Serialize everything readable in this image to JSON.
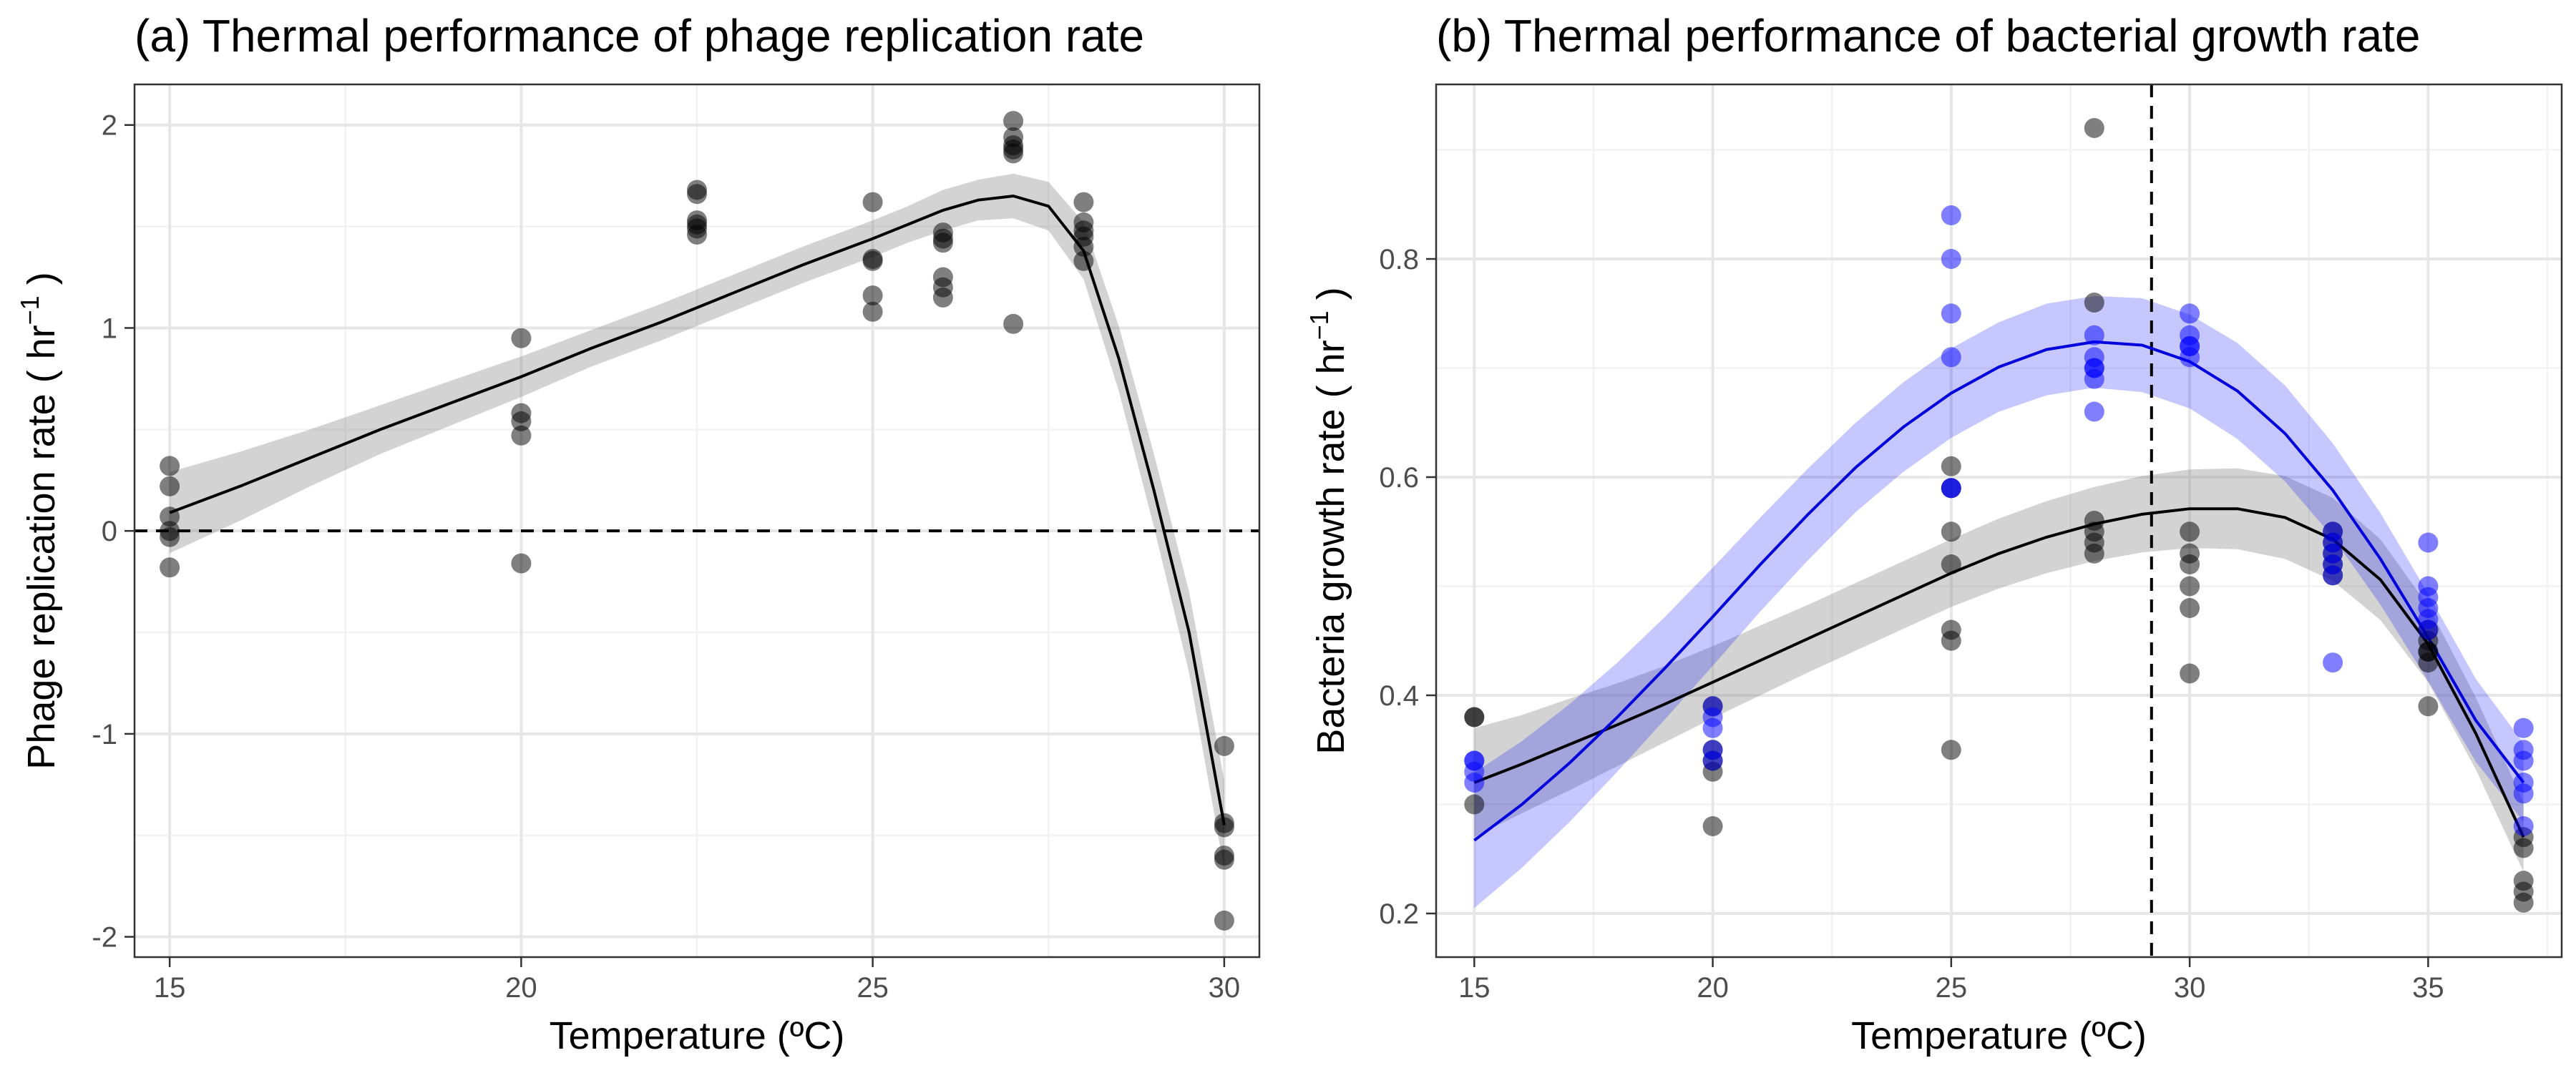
{
  "chart_data": [
    {
      "type": "scatter",
      "title": "(a) Thermal performance of phage replication rate",
      "xlabel": "Temperature (ºC)",
      "ylabel": "Phage replication rate ( hr",
      "ylabel_sup": "−1",
      "ylabel_end": " )",
      "xlim": [
        14.5,
        30.5
      ],
      "ylim": [
        -2.1,
        2.2
      ],
      "x_ticks": [
        15,
        20,
        25,
        30
      ],
      "x_tick_labels": [
        "15",
        "20",
        "25",
        "30"
      ],
      "y_ticks": [
        -2,
        -1,
        0,
        1,
        2
      ],
      "y_tick_labels": [
        "-2",
        "-1",
        "0",
        "1",
        "2"
      ],
      "reference_line": {
        "orientation": "horizontal",
        "value": 0,
        "style": "dashed"
      },
      "grid": true,
      "series": [
        {
          "color": "#000000",
          "points": [
            [
              15,
              0.32
            ],
            [
              15,
              0.22
            ],
            [
              15,
              0.07
            ],
            [
              15,
              0.0
            ],
            [
              15,
              -0.03
            ],
            [
              15,
              -0.18
            ],
            [
              20,
              0.95
            ],
            [
              20,
              0.58
            ],
            [
              20,
              0.54
            ],
            [
              20,
              0.47
            ],
            [
              20,
              -0.16
            ],
            [
              22.5,
              1.68
            ],
            [
              22.5,
              1.66
            ],
            [
              22.5,
              1.53
            ],
            [
              22.5,
              1.51
            ],
            [
              22.5,
              1.49
            ],
            [
              22.5,
              1.46
            ],
            [
              25,
              1.62
            ],
            [
              25,
              1.34
            ],
            [
              25,
              1.33
            ],
            [
              25,
              1.16
            ],
            [
              25,
              1.08
            ],
            [
              26,
              1.47
            ],
            [
              26,
              1.44
            ],
            [
              26,
              1.42
            ],
            [
              26,
              1.25
            ],
            [
              26,
              1.2
            ],
            [
              26,
              1.15
            ],
            [
              27,
              2.02
            ],
            [
              27,
              1.94
            ],
            [
              27,
              1.9
            ],
            [
              27,
              1.88
            ],
            [
              27,
              1.86
            ],
            [
              27,
              1.02
            ],
            [
              28,
              1.62
            ],
            [
              28,
              1.52
            ],
            [
              28,
              1.48
            ],
            [
              28,
              1.45
            ],
            [
              28,
              1.4
            ],
            [
              28,
              1.33
            ],
            [
              30,
              -1.06
            ],
            [
              30,
              -1.44
            ],
            [
              30,
              -1.46
            ],
            [
              30,
              -1.6
            ],
            [
              30,
              -1.62
            ],
            [
              30,
              -1.92
            ]
          ],
          "fit": [
            [
              15,
              0.09
            ],
            [
              16,
              0.22
            ],
            [
              17,
              0.36
            ],
            [
              18,
              0.5
            ],
            [
              19,
              0.63
            ],
            [
              20,
              0.76
            ],
            [
              21,
              0.9
            ],
            [
              22,
              1.03
            ],
            [
              23,
              1.17
            ],
            [
              24,
              1.31
            ],
            [
              25,
              1.44
            ],
            [
              25.5,
              1.51
            ],
            [
              26,
              1.58
            ],
            [
              26.5,
              1.63
            ],
            [
              27,
              1.65
            ],
            [
              27.5,
              1.6
            ],
            [
              28,
              1.38
            ],
            [
              28.5,
              0.85
            ],
            [
              29,
              0.2
            ],
            [
              29.5,
              -0.5
            ],
            [
              30,
              -1.45
            ]
          ],
          "band_halfwidth": [
            0.2,
            0.17,
            0.14,
            0.12,
            0.11,
            0.1,
            0.09,
            0.09,
            0.09,
            0.09,
            0.09,
            0.09,
            0.1,
            0.1,
            0.11,
            0.12,
            0.14,
            0.16,
            0.18,
            0.2,
            0.22
          ]
        }
      ]
    },
    {
      "type": "scatter",
      "title": "(b) Thermal performance of bacterial growth rate",
      "xlabel": "Temperature (ºC)",
      "ylabel": "Bacteria growth rate ( hr",
      "ylabel_sup": "−1",
      "ylabel_end": " )",
      "xlim": [
        14.2,
        37.8
      ],
      "ylim": [
        0.16,
        0.96
      ],
      "x_ticks": [
        15,
        20,
        25,
        30,
        35
      ],
      "x_tick_labels": [
        "15",
        "20",
        "25",
        "30",
        "35"
      ],
      "y_ticks": [
        0.2,
        0.4,
        0.6,
        0.8
      ],
      "y_tick_labels": [
        "0.2",
        "0.4",
        "0.6",
        "0.8"
      ],
      "reference_line": {
        "orientation": "vertical",
        "value": 29.2,
        "style": "dashed"
      },
      "grid": true,
      "series": [
        {
          "color": "#000000",
          "points": [
            [
              15,
              0.38
            ],
            [
              15,
              0.38
            ],
            [
              15,
              0.3
            ],
            [
              20,
              0.39
            ],
            [
              20,
              0.35
            ],
            [
              20,
              0.34
            ],
            [
              20,
              0.33
            ],
            [
              20,
              0.28
            ],
            [
              25,
              0.61
            ],
            [
              25,
              0.59
            ],
            [
              25,
              0.55
            ],
            [
              25,
              0.52
            ],
            [
              25,
              0.46
            ],
            [
              25,
              0.45
            ],
            [
              25,
              0.35
            ],
            [
              28,
              0.92
            ],
            [
              28,
              0.76
            ],
            [
              28,
              0.56
            ],
            [
              28,
              0.55
            ],
            [
              28,
              0.54
            ],
            [
              28,
              0.53
            ],
            [
              30,
              0.55
            ],
            [
              30,
              0.53
            ],
            [
              30,
              0.52
            ],
            [
              30,
              0.5
            ],
            [
              30,
              0.48
            ],
            [
              30,
              0.42
            ],
            [
              33,
              0.55
            ],
            [
              33,
              0.54
            ],
            [
              33,
              0.53
            ],
            [
              33,
              0.52
            ],
            [
              33,
              0.51
            ],
            [
              35,
              0.46
            ],
            [
              35,
              0.45
            ],
            [
              35,
              0.44
            ],
            [
              35,
              0.44
            ],
            [
              35,
              0.43
            ],
            [
              35,
              0.39
            ],
            [
              37,
              0.27
            ],
            [
              37,
              0.26
            ],
            [
              37,
              0.23
            ],
            [
              37,
              0.22
            ],
            [
              37,
              0.21
            ]
          ],
          "fit": [
            [
              15,
              0.32
            ],
            [
              16,
              0.337
            ],
            [
              17,
              0.355
            ],
            [
              18,
              0.373
            ],
            [
              19,
              0.392
            ],
            [
              20,
              0.412
            ],
            [
              21,
              0.432
            ],
            [
              22,
              0.452
            ],
            [
              23,
              0.472
            ],
            [
              24,
              0.492
            ],
            [
              25,
              0.512
            ],
            [
              26,
              0.53
            ],
            [
              27,
              0.545
            ],
            [
              28,
              0.557
            ],
            [
              29,
              0.566
            ],
            [
              30,
              0.571
            ],
            [
              31,
              0.571
            ],
            [
              32,
              0.563
            ],
            [
              33,
              0.543
            ],
            [
              34,
              0.506
            ],
            [
              35,
              0.447
            ],
            [
              36,
              0.365
            ],
            [
              37,
              0.27
            ]
          ],
          "band_halfwidth": [
            0.05,
            0.045,
            0.042,
            0.038,
            0.035,
            0.033,
            0.032,
            0.031,
            0.031,
            0.031,
            0.031,
            0.032,
            0.033,
            0.034,
            0.035,
            0.036,
            0.037,
            0.038,
            0.038,
            0.037,
            0.035,
            0.033,
            0.032
          ]
        },
        {
          "color": "#0000ff",
          "points": [
            [
              15,
              0.34
            ],
            [
              15,
              0.34
            ],
            [
              15,
              0.33
            ],
            [
              15,
              0.32
            ],
            [
              20,
              0.39
            ],
            [
              20,
              0.38
            ],
            [
              20,
              0.37
            ],
            [
              20,
              0.35
            ],
            [
              20,
              0.34
            ],
            [
              25,
              0.84
            ],
            [
              25,
              0.8
            ],
            [
              25,
              0.75
            ],
            [
              25,
              0.71
            ],
            [
              25,
              0.59
            ],
            [
              25,
              0.59
            ],
            [
              28,
              0.73
            ],
            [
              28,
              0.71
            ],
            [
              28,
              0.7
            ],
            [
              28,
              0.7
            ],
            [
              28,
              0.69
            ],
            [
              28,
              0.66
            ],
            [
              30,
              0.75
            ],
            [
              30,
              0.73
            ],
            [
              30,
              0.72
            ],
            [
              30,
              0.72
            ],
            [
              30,
              0.71
            ],
            [
              33,
              0.55
            ],
            [
              33,
              0.54
            ],
            [
              33,
              0.53
            ],
            [
              33,
              0.52
            ],
            [
              33,
              0.51
            ],
            [
              33,
              0.43
            ],
            [
              35,
              0.54
            ],
            [
              35,
              0.5
            ],
            [
              35,
              0.49
            ],
            [
              35,
              0.48
            ],
            [
              35,
              0.47
            ],
            [
              35,
              0.46
            ],
            [
              37,
              0.37
            ],
            [
              37,
              0.35
            ],
            [
              37,
              0.34
            ],
            [
              37,
              0.32
            ],
            [
              37,
              0.31
            ],
            [
              37,
              0.28
            ]
          ],
          "fit": [
            [
              15,
              0.267
            ],
            [
              16,
              0.3
            ],
            [
              17,
              0.338
            ],
            [
              18,
              0.38
            ],
            [
              19,
              0.425
            ],
            [
              20,
              0.472
            ],
            [
              21,
              0.52
            ],
            [
              22,
              0.566
            ],
            [
              23,
              0.609
            ],
            [
              24,
              0.646
            ],
            [
              25,
              0.677
            ],
            [
              26,
              0.701
            ],
            [
              27,
              0.717
            ],
            [
              28,
              0.724
            ],
            [
              29,
              0.721
            ],
            [
              30,
              0.706
            ],
            [
              31,
              0.679
            ],
            [
              32,
              0.64
            ],
            [
              33,
              0.588
            ],
            [
              34,
              0.525
            ],
            [
              35,
              0.453
            ],
            [
              36,
              0.377
            ],
            [
              37,
              0.32
            ]
          ],
          "band_halfwidth": [
            0.062,
            0.058,
            0.054,
            0.05,
            0.047,
            0.045,
            0.043,
            0.042,
            0.041,
            0.041,
            0.041,
            0.041,
            0.042,
            0.042,
            0.043,
            0.043,
            0.044,
            0.044,
            0.043,
            0.042,
            0.04,
            0.038,
            0.036
          ]
        }
      ]
    }
  ]
}
